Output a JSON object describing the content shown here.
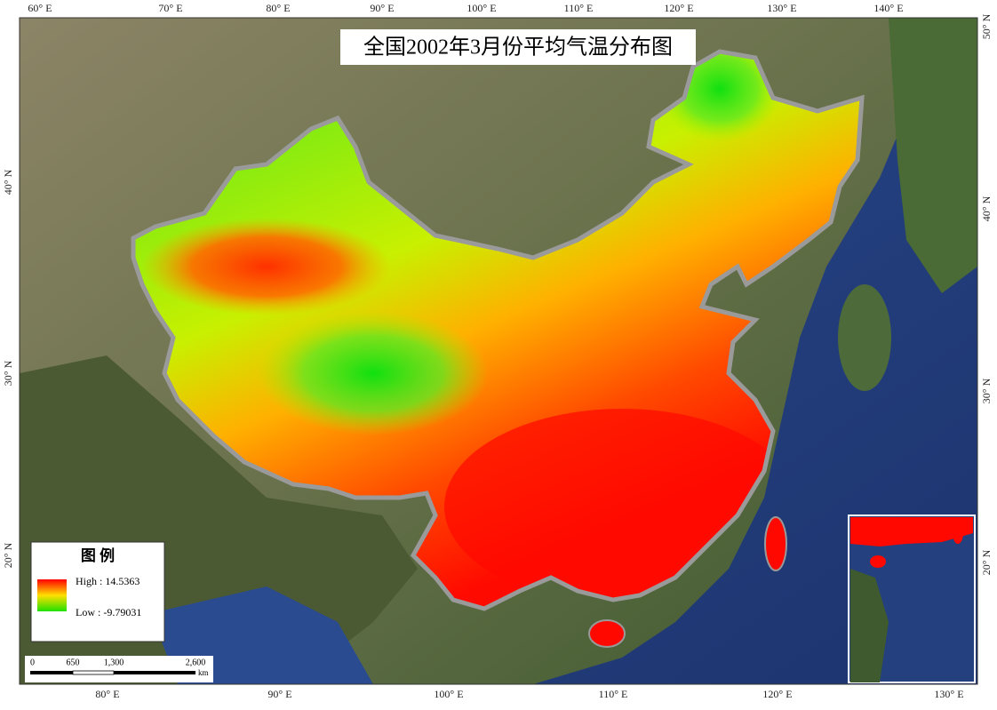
{
  "title": "全国2002年3月份平均气温分布图",
  "graticule": {
    "top": [
      "60° E",
      "70° E",
      "80° E",
      "90° E",
      "100° E",
      "110° E",
      "120° E",
      "130° E",
      "140° E"
    ],
    "bottom": [
      "80° E",
      "90° E",
      "100° E",
      "110° E",
      "120° E",
      "130° E"
    ],
    "left": [
      "40° N",
      "30° N",
      "20° N"
    ],
    "right": [
      "50° N",
      "40° N",
      "30° N",
      "20° N"
    ]
  },
  "legend": {
    "title": "图 例",
    "high": "High : 14.5363",
    "low": "Low : -9.79031"
  },
  "scale_bar": {
    "labels": [
      "0",
      "650",
      "1,300",
      "2,600"
    ],
    "unit": "km"
  }
}
